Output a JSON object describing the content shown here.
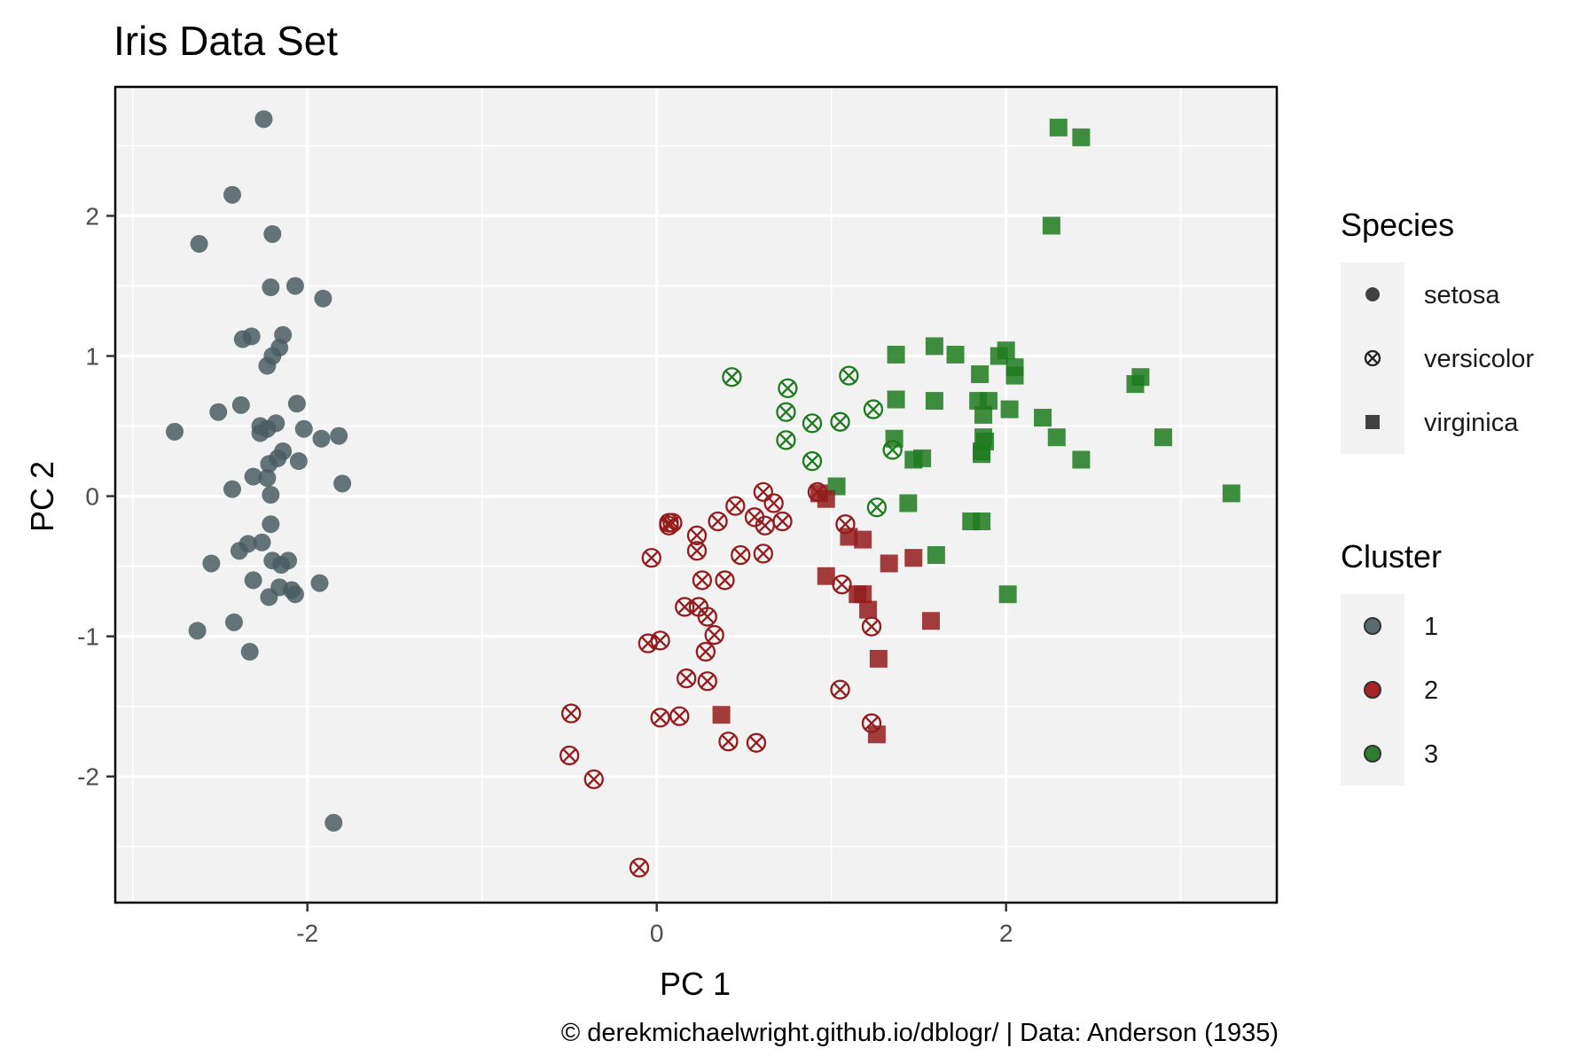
{
  "chart_data": {
    "type": "scatter",
    "title": "Iris Data Set",
    "xlabel": "PC 1",
    "ylabel": "PC 2",
    "caption": "© derekmichaelwright.github.io/dblogr/ | Data: Anderson (1935)",
    "xlim": [
      -3.1,
      3.55
    ],
    "ylim": [
      -2.9,
      2.92
    ],
    "x_ticks": [
      -2,
      0,
      2
    ],
    "x_tick_labels": [
      "-2",
      "0",
      "2"
    ],
    "y_ticks": [
      -2,
      -1,
      0,
      1,
      2
    ],
    "y_tick_labels": [
      "-2",
      "-1",
      "0",
      "1",
      "2"
    ],
    "grid": true,
    "legends": [
      {
        "title": "Species",
        "items": [
          {
            "label": "setosa",
            "shape": "circle"
          },
          {
            "label": "versicolor",
            "shape": "circle-x"
          },
          {
            "label": "virginica",
            "shape": "square"
          }
        ]
      },
      {
        "title": "Cluster",
        "items": [
          {
            "label": "1",
            "color": "#5a6b6f"
          },
          {
            "label": "2",
            "color": "#a82525"
          },
          {
            "label": "3",
            "color": "#2e7d2e"
          }
        ]
      }
    ],
    "legend_position": "right",
    "colors": {
      "1": "#4a5d61",
      "2": "#941c1c",
      "3": "#1e7a1e"
    },
    "series": [
      {
        "species": "setosa",
        "cluster": "1",
        "shape": "circle",
        "points": [
          [
            -2.25,
            2.69
          ],
          [
            -2.43,
            2.15
          ],
          [
            -2.62,
            1.8
          ],
          [
            -2.2,
            1.87
          ],
          [
            -2.21,
            1.49
          ],
          [
            -2.07,
            1.5
          ],
          [
            -1.91,
            1.41
          ],
          [
            -2.32,
            1.14
          ],
          [
            -2.37,
            1.12
          ],
          [
            -2.14,
            1.15
          ],
          [
            -2.2,
            1.0
          ],
          [
            -2.23,
            0.93
          ],
          [
            -2.16,
            1.06
          ],
          [
            -2.06,
            0.66
          ],
          [
            -2.38,
            0.65
          ],
          [
            -2.51,
            0.6
          ],
          [
            -2.76,
            0.46
          ],
          [
            -2.27,
            0.45
          ],
          [
            -2.23,
            0.48
          ],
          [
            -2.27,
            0.5
          ],
          [
            -2.18,
            0.52
          ],
          [
            -2.02,
            0.48
          ],
          [
            -1.92,
            0.41
          ],
          [
            -1.82,
            0.43
          ],
          [
            -2.14,
            0.32
          ],
          [
            -2.17,
            0.27
          ],
          [
            -2.22,
            0.23
          ],
          [
            -2.05,
            0.25
          ],
          [
            -2.31,
            0.14
          ],
          [
            -2.23,
            0.13
          ],
          [
            -2.43,
            0.05
          ],
          [
            -1.8,
            0.09
          ],
          [
            -2.21,
            0.01
          ],
          [
            -2.21,
            -0.2
          ],
          [
            -2.39,
            -0.39
          ],
          [
            -2.34,
            -0.34
          ],
          [
            -2.26,
            -0.33
          ],
          [
            -2.55,
            -0.48
          ],
          [
            -2.2,
            -0.46
          ],
          [
            -2.11,
            -0.46
          ],
          [
            -2.15,
            -0.49
          ],
          [
            -1.93,
            -0.62
          ],
          [
            -2.31,
            -0.6
          ],
          [
            -2.16,
            -0.65
          ],
          [
            -2.09,
            -0.67
          ],
          [
            -2.07,
            -0.7
          ],
          [
            -2.22,
            -0.72
          ],
          [
            -2.42,
            -0.9
          ],
          [
            -2.63,
            -0.96
          ],
          [
            -2.33,
            -1.11
          ],
          [
            -1.85,
            -2.33
          ]
        ]
      },
      {
        "species": "versicolor",
        "cluster": "3",
        "shape": "circle-x",
        "points": [
          [
            0.43,
            0.85
          ],
          [
            1.1,
            0.86
          ],
          [
            0.75,
            0.77
          ],
          [
            0.74,
            0.6
          ],
          [
            0.89,
            0.52
          ],
          [
            1.05,
            0.53
          ],
          [
            1.24,
            0.62
          ],
          [
            0.74,
            0.4
          ],
          [
            0.89,
            0.25
          ],
          [
            1.35,
            0.33
          ],
          [
            1.26,
            -0.08
          ]
        ]
      },
      {
        "species": "versicolor",
        "cluster": "2",
        "shape": "circle-x",
        "points": [
          [
            0.61,
            0.03
          ],
          [
            0.92,
            0.03
          ],
          [
            0.67,
            -0.05
          ],
          [
            0.45,
            -0.07
          ],
          [
            0.07,
            -0.19
          ],
          [
            0.09,
            -0.19
          ],
          [
            0.07,
            -0.21
          ],
          [
            0.35,
            -0.18
          ],
          [
            0.56,
            -0.15
          ],
          [
            0.62,
            -0.21
          ],
          [
            0.72,
            -0.18
          ],
          [
            1.08,
            -0.2
          ],
          [
            0.23,
            -0.28
          ],
          [
            0.23,
            -0.39
          ],
          [
            0.48,
            -0.42
          ],
          [
            0.61,
            -0.41
          ],
          [
            -0.03,
            -0.44
          ],
          [
            0.26,
            -0.6
          ],
          [
            0.39,
            -0.6
          ],
          [
            1.06,
            -0.63
          ],
          [
            0.16,
            -0.79
          ],
          [
            0.24,
            -0.79
          ],
          [
            0.29,
            -0.86
          ],
          [
            1.23,
            -0.93
          ],
          [
            0.33,
            -0.99
          ],
          [
            0.28,
            -1.11
          ],
          [
            -0.05,
            -1.05
          ],
          [
            0.02,
            -1.03
          ],
          [
            0.17,
            -1.3
          ],
          [
            0.29,
            -1.32
          ],
          [
            1.05,
            -1.38
          ],
          [
            -0.49,
            -1.55
          ],
          [
            0.02,
            -1.58
          ],
          [
            0.13,
            -1.57
          ],
          [
            0.41,
            -1.75
          ],
          [
            0.57,
            -1.76
          ],
          [
            1.23,
            -1.62
          ],
          [
            -0.5,
            -1.85
          ],
          [
            -0.36,
            -2.02
          ],
          [
            -0.1,
            -2.65
          ]
        ]
      },
      {
        "species": "virginica",
        "cluster": "3",
        "shape": "square",
        "points": [
          [
            2.3,
            2.63
          ],
          [
            2.43,
            2.56
          ],
          [
            2.26,
            1.93
          ],
          [
            1.59,
            1.07
          ],
          [
            1.37,
            1.01
          ],
          [
            1.71,
            1.01
          ],
          [
            2.0,
            1.04
          ],
          [
            1.96,
            1.0
          ],
          [
            2.05,
            0.92
          ],
          [
            2.05,
            0.86
          ],
          [
            2.77,
            0.85
          ],
          [
            2.74,
            0.8
          ],
          [
            1.85,
            0.87
          ],
          [
            1.37,
            0.69
          ],
          [
            1.59,
            0.68
          ],
          [
            1.84,
            0.68
          ],
          [
            1.9,
            0.68
          ],
          [
            2.02,
            0.62
          ],
          [
            1.87,
            0.58
          ],
          [
            2.21,
            0.56
          ],
          [
            1.87,
            0.42
          ],
          [
            1.88,
            0.39
          ],
          [
            2.29,
            0.42
          ],
          [
            2.9,
            0.42
          ],
          [
            1.36,
            0.41
          ],
          [
            1.86,
            0.32
          ],
          [
            1.86,
            0.3
          ],
          [
            1.47,
            0.26
          ],
          [
            1.52,
            0.27
          ],
          [
            2.43,
            0.26
          ],
          [
            1.03,
            0.07
          ],
          [
            3.29,
            0.02
          ],
          [
            1.44,
            -0.05
          ],
          [
            1.8,
            -0.18
          ],
          [
            1.86,
            -0.18
          ],
          [
            1.6,
            -0.42
          ],
          [
            2.01,
            -0.7
          ]
        ]
      },
      {
        "species": "virginica",
        "cluster": "2",
        "shape": "square",
        "points": [
          [
            0.93,
            0.02
          ],
          [
            0.97,
            -0.02
          ],
          [
            1.1,
            -0.29
          ],
          [
            1.18,
            -0.31
          ],
          [
            1.33,
            -0.48
          ],
          [
            1.47,
            -0.44
          ],
          [
            0.97,
            -0.57
          ],
          [
            1.15,
            -0.7
          ],
          [
            1.18,
            -0.7
          ],
          [
            1.21,
            -0.81
          ],
          [
            1.57,
            -0.89
          ],
          [
            1.27,
            -1.16
          ],
          [
            0.37,
            -1.56
          ],
          [
            1.26,
            -1.7
          ]
        ]
      }
    ]
  }
}
